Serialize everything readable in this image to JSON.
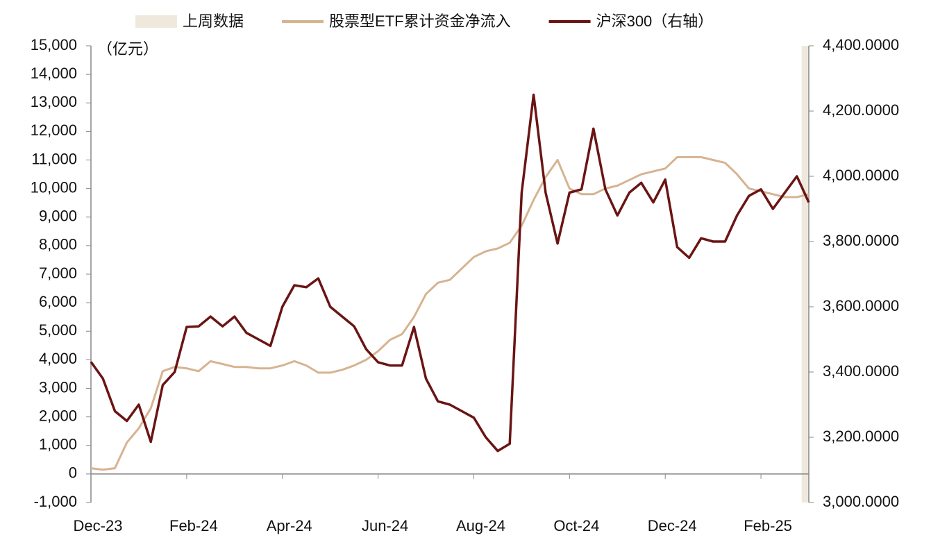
{
  "chart_data": {
    "type": "line",
    "legend_position": "top",
    "annotations": [
      "（亿元）"
    ],
    "categories": [
      "Dec-23",
      null,
      null,
      null,
      null,
      null,
      null,
      null,
      "Feb-24",
      null,
      null,
      null,
      null,
      null,
      null,
      null,
      "Apr-24",
      null,
      null,
      null,
      null,
      null,
      null,
      null,
      "Jun-24",
      null,
      null,
      null,
      null,
      null,
      null,
      null,
      "Aug-24",
      null,
      null,
      null,
      null,
      null,
      null,
      null,
      "Oct-24",
      null,
      null,
      null,
      null,
      null,
      null,
      null,
      "Dec-24",
      null,
      null,
      null,
      null,
      null,
      null,
      null,
      "Feb-25",
      null,
      null,
      null,
      null
    ],
    "ylim": [
      -1000,
      15000
    ],
    "yticks": [
      {
        "value": -1000,
        "label": "-1,000"
      },
      0,
      {
        "value": 1000,
        "label": "1,000"
      },
      {
        "value": 2000,
        "label": "2,000"
      },
      {
        "value": 3000,
        "label": "3,000"
      },
      {
        "value": 4000,
        "label": "4,000"
      },
      {
        "value": 5000,
        "label": "5,000"
      },
      {
        "value": 6000,
        "label": "6,000"
      },
      {
        "value": 7000,
        "label": "7,000"
      },
      {
        "value": 8000,
        "label": "8,000"
      },
      {
        "value": 9000,
        "label": "9,000"
      },
      {
        "value": 10000,
        "label": "10,000"
      },
      {
        "value": 11000,
        "label": "11,000"
      },
      {
        "value": 12000,
        "label": "12,000"
      },
      {
        "value": 13000,
        "label": "13,000"
      },
      {
        "value": 14000,
        "label": "14,000"
      },
      {
        "value": 15000,
        "label": "15,000"
      }
    ],
    "y2lim": [
      3000,
      4400
    ],
    "y2ticks": [
      {
        "value": 3000,
        "label": "3,000.0000"
      },
      {
        "value": 3200,
        "label": "3,200.0000"
      },
      {
        "value": 3400,
        "label": "3,400.0000"
      },
      {
        "value": 3600,
        "label": "3,600.0000"
      },
      {
        "value": 3800,
        "label": "3,800.0000"
      },
      {
        "value": 4000,
        "label": "4,000.0000"
      },
      {
        "value": 4200,
        "label": "4,200.0000"
      },
      {
        "value": 4400,
        "label": "4,400.0000"
      }
    ],
    "series": [
      {
        "name": "上周数据",
        "type": "bar",
        "color": "#efe9dd",
        "values": [
          null,
          null,
          null,
          null,
          null,
          null,
          null,
          null,
          null,
          null,
          null,
          null,
          null,
          null,
          null,
          null,
          null,
          null,
          null,
          null,
          null,
          null,
          null,
          null,
          null,
          null,
          null,
          null,
          null,
          null,
          null,
          null,
          null,
          null,
          null,
          null,
          null,
          null,
          null,
          null,
          null,
          null,
          null,
          null,
          null,
          null,
          null,
          null,
          null,
          null,
          null,
          null,
          null,
          null,
          null,
          null,
          null,
          null,
          null,
          null,
          15000
        ]
      },
      {
        "name": "股票型ETF累计资金净流入",
        "type": "line",
        "color": "#d6b391",
        "values": [
          200,
          150,
          200,
          1100,
          1600,
          2300,
          3600,
          3750,
          3700,
          3600,
          3950,
          3850,
          3750,
          3750,
          3700,
          3700,
          3800,
          3950,
          3800,
          3550,
          3550,
          3650,
          3800,
          4000,
          4300,
          4700,
          4900,
          5500,
          6300,
          6700,
          6800,
          7200,
          7600,
          7800,
          7900,
          8100,
          8700,
          9600,
          10400,
          11000,
          10000,
          9800,
          9800,
          10000,
          10100,
          10300,
          10500,
          10600,
          10700,
          11100,
          11100,
          11100,
          11000,
          10900,
          10500,
          10000,
          9900,
          9800,
          9700,
          9700,
          9800
        ]
      },
      {
        "name": "沪深300（右轴）",
        "type": "line",
        "axis": "y2",
        "color": "#6b1414",
        "values": [
          3431,
          3380,
          3280,
          3250,
          3300,
          3186,
          3360,
          3400,
          3538,
          3540,
          3570,
          3540,
          3570,
          3520,
          3500,
          3480,
          3600,
          3666,
          3660,
          3687,
          3600,
          3570,
          3540,
          3470,
          3430,
          3420,
          3420,
          3538,
          3380,
          3310,
          3300,
          3280,
          3260,
          3200,
          3158,
          3180,
          3950,
          4250,
          3950,
          3794,
          3950,
          3960,
          4146,
          3960,
          3880,
          3950,
          3980,
          3920,
          3990,
          3783,
          3750,
          3810,
          3800,
          3800,
          3880,
          3940,
          3960,
          3900,
          3950,
          4000,
          3920
        ]
      }
    ]
  }
}
